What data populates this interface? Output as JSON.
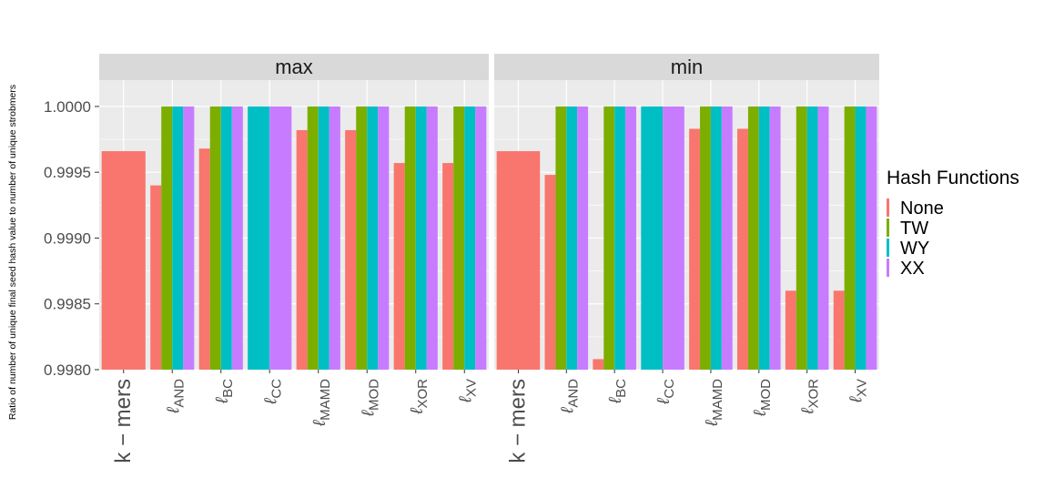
{
  "chart_data": {
    "type": "bar",
    "ylabel": "Ratio of number of unique final seed hash value to number of unique strobmers",
    "ylim": [
      0.998,
      1.0002
    ],
    "yticks": [
      0.998,
      0.9985,
      0.999,
      0.9995,
      1.0
    ],
    "ytick_labels": [
      "0.9980",
      "0.9985",
      "0.9990",
      "0.9995",
      "1.0000"
    ],
    "grid": true,
    "legend": {
      "title": "Hash Functions",
      "placement": "right",
      "entries": [
        {
          "name": "None",
          "color": "#F8766D"
        },
        {
          "name": "TW",
          "color": "#7CAE00"
        },
        {
          "name": "WY",
          "color": "#00BFC4"
        },
        {
          "name": "XX",
          "color": "#C77CFF"
        }
      ]
    },
    "categories": [
      {
        "label": "k − mers",
        "sub": ""
      },
      {
        "label": "ℓ",
        "sub": "AND"
      },
      {
        "label": "ℓ",
        "sub": "BC"
      },
      {
        "label": "ℓ",
        "sub": "CC"
      },
      {
        "label": "ℓ",
        "sub": "MAMD"
      },
      {
        "label": "ℓ",
        "sub": "MOD"
      },
      {
        "label": "ℓ",
        "sub": "XOR"
      },
      {
        "label": "ℓ",
        "sub": "XV"
      }
    ],
    "facets": [
      {
        "title": "max",
        "series": [
          {
            "name": "None",
            "values": [
              0.99966,
              0.9994,
              0.99968,
              null,
              0.99982,
              0.99982,
              0.99957,
              0.99957
            ]
          },
          {
            "name": "TW",
            "values": [
              null,
              1.0,
              1.0,
              null,
              1.0,
              1.0,
              1.0,
              1.0
            ]
          },
          {
            "name": "WY",
            "values": [
              null,
              1.0,
              1.0,
              1.0,
              1.0,
              1.0,
              1.0,
              1.0
            ]
          },
          {
            "name": "XX",
            "values": [
              null,
              1.0,
              1.0,
              1.0,
              1.0,
              1.0,
              1.0,
              1.0
            ]
          }
        ]
      },
      {
        "title": "min",
        "series": [
          {
            "name": "None",
            "values": [
              0.99966,
              0.99948,
              0.99808,
              null,
              0.99983,
              0.99983,
              0.9986,
              0.9986
            ]
          },
          {
            "name": "TW",
            "values": [
              null,
              1.0,
              1.0,
              null,
              1.0,
              1.0,
              1.0,
              1.0
            ]
          },
          {
            "name": "WY",
            "values": [
              null,
              1.0,
              1.0,
              1.0,
              1.0,
              1.0,
              1.0,
              1.0
            ]
          },
          {
            "name": "XX",
            "values": [
              null,
              1.0,
              1.0,
              1.0,
              1.0,
              1.0,
              1.0,
              1.0
            ]
          }
        ]
      }
    ]
  }
}
